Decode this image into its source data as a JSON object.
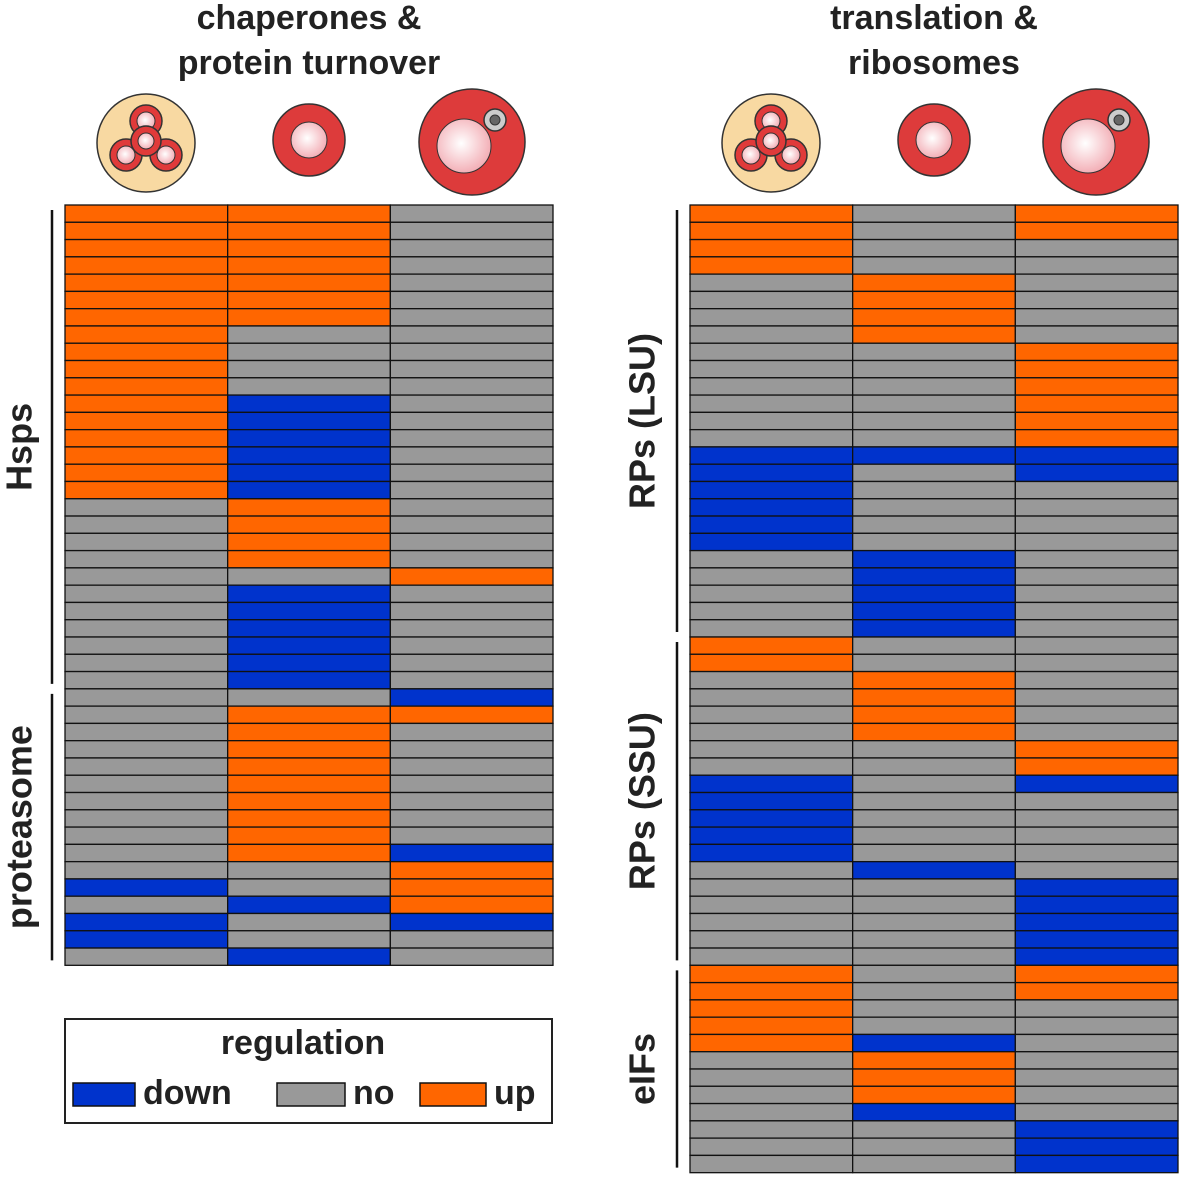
{
  "chart_data": {
    "type": "heatmap",
    "panels": [
      {
        "title": [
          "chaperones &",
          "protein turnover"
        ],
        "groups": [
          {
            "label": "Hsps",
            "rows": [
              [
                1,
                1,
                0
              ],
              [
                1,
                1,
                0
              ],
              [
                1,
                1,
                0
              ],
              [
                1,
                1,
                0
              ],
              [
                1,
                1,
                0
              ],
              [
                1,
                1,
                0
              ],
              [
                1,
                1,
                0
              ],
              [
                1,
                0,
                0
              ],
              [
                1,
                0,
                0
              ],
              [
                1,
                0,
                0
              ],
              [
                1,
                0,
                0
              ],
              [
                1,
                -1,
                0
              ],
              [
                1,
                -1,
                0
              ],
              [
                1,
                -1,
                0
              ],
              [
                1,
                -1,
                0
              ],
              [
                1,
                -1,
                0
              ],
              [
                1,
                -1,
                0
              ],
              [
                0,
                1,
                0
              ],
              [
                0,
                1,
                0
              ],
              [
                0,
                1,
                0
              ],
              [
                0,
                1,
                0
              ],
              [
                0,
                0,
                1
              ],
              [
                0,
                -1,
                0
              ],
              [
                0,
                -1,
                0
              ],
              [
                0,
                -1,
                0
              ],
              [
                0,
                -1,
                0
              ],
              [
                0,
                -1,
                0
              ],
              [
                0,
                -1,
                0
              ]
            ]
          },
          {
            "label": "proteasome",
            "rows": [
              [
                0,
                0,
                -1
              ],
              [
                0,
                1,
                1
              ],
              [
                0,
                1,
                0
              ],
              [
                0,
                1,
                0
              ],
              [
                0,
                1,
                0
              ],
              [
                0,
                1,
                0
              ],
              [
                0,
                1,
                0
              ],
              [
                0,
                1,
                0
              ],
              [
                0,
                1,
                0
              ],
              [
                0,
                1,
                -1
              ],
              [
                0,
                0,
                1
              ],
              [
                -1,
                0,
                1
              ],
              [
                0,
                -1,
                1
              ],
              [
                -1,
                0,
                -1
              ],
              [
                -1,
                0,
                0
              ],
              [
                0,
                -1,
                0
              ]
            ]
          }
        ]
      },
      {
        "title": [
          "translation &",
          "ribosomes"
        ],
        "groups": [
          {
            "label": "RPs (LSU)",
            "rows": [
              [
                1,
                0,
                1
              ],
              [
                1,
                0,
                1
              ],
              [
                1,
                0,
                0
              ],
              [
                1,
                0,
                0
              ],
              [
                0,
                1,
                0
              ],
              [
                0,
                1,
                0
              ],
              [
                0,
                1,
                0
              ],
              [
                0,
                1,
                0
              ],
              [
                0,
                0,
                1
              ],
              [
                0,
                0,
                1
              ],
              [
                0,
                0,
                1
              ],
              [
                0,
                0,
                1
              ],
              [
                0,
                0,
                1
              ],
              [
                0,
                0,
                1
              ],
              [
                -1,
                -1,
                -1
              ],
              [
                -1,
                0,
                -1
              ],
              [
                -1,
                0,
                0
              ],
              [
                -1,
                0,
                0
              ],
              [
                -1,
                0,
                0
              ],
              [
                -1,
                0,
                0
              ],
              [
                0,
                -1,
                0
              ],
              [
                0,
                -1,
                0
              ],
              [
                0,
                -1,
                0
              ],
              [
                0,
                -1,
                0
              ],
              [
                0,
                -1,
                0
              ]
            ]
          },
          {
            "label": "RPs (SSU)",
            "rows": [
              [
                1,
                0,
                0
              ],
              [
                1,
                0,
                0
              ],
              [
                0,
                1,
                0
              ],
              [
                0,
                1,
                0
              ],
              [
                0,
                1,
                0
              ],
              [
                0,
                1,
                0
              ],
              [
                0,
                0,
                1
              ],
              [
                0,
                0,
                1
              ],
              [
                -1,
                0,
                -1
              ],
              [
                -1,
                0,
                0
              ],
              [
                -1,
                0,
                0
              ],
              [
                -1,
                0,
                0
              ],
              [
                -1,
                0,
                0
              ],
              [
                0,
                -1,
                0
              ],
              [
                0,
                0,
                -1
              ],
              [
                0,
                0,
                -1
              ],
              [
                0,
                0,
                -1
              ],
              [
                0,
                0,
                -1
              ],
              [
                0,
                0,
                -1
              ]
            ]
          },
          {
            "label": "eIFs",
            "rows": [
              [
                1,
                0,
                1
              ],
              [
                1,
                0,
                1
              ],
              [
                1,
                0,
                0
              ],
              [
                1,
                0,
                0
              ],
              [
                1,
                -1,
                0
              ],
              [
                0,
                1,
                0
              ],
              [
                0,
                1,
                0
              ],
              [
                0,
                1,
                0
              ],
              [
                0,
                -1,
                0
              ],
              [
                0,
                0,
                -1
              ],
              [
                0,
                0,
                -1
              ],
              [
                0,
                0,
                -1
              ]
            ]
          }
        ]
      }
    ],
    "legend": {
      "title": "regulation",
      "levels": [
        {
          "value": -1,
          "label": "down",
          "color": "#0033cc"
        },
        {
          "value": 0,
          "label": "no",
          "color": "#999999"
        },
        {
          "value": 1,
          "label": "up",
          "color": "#ff6600"
        }
      ]
    }
  }
}
